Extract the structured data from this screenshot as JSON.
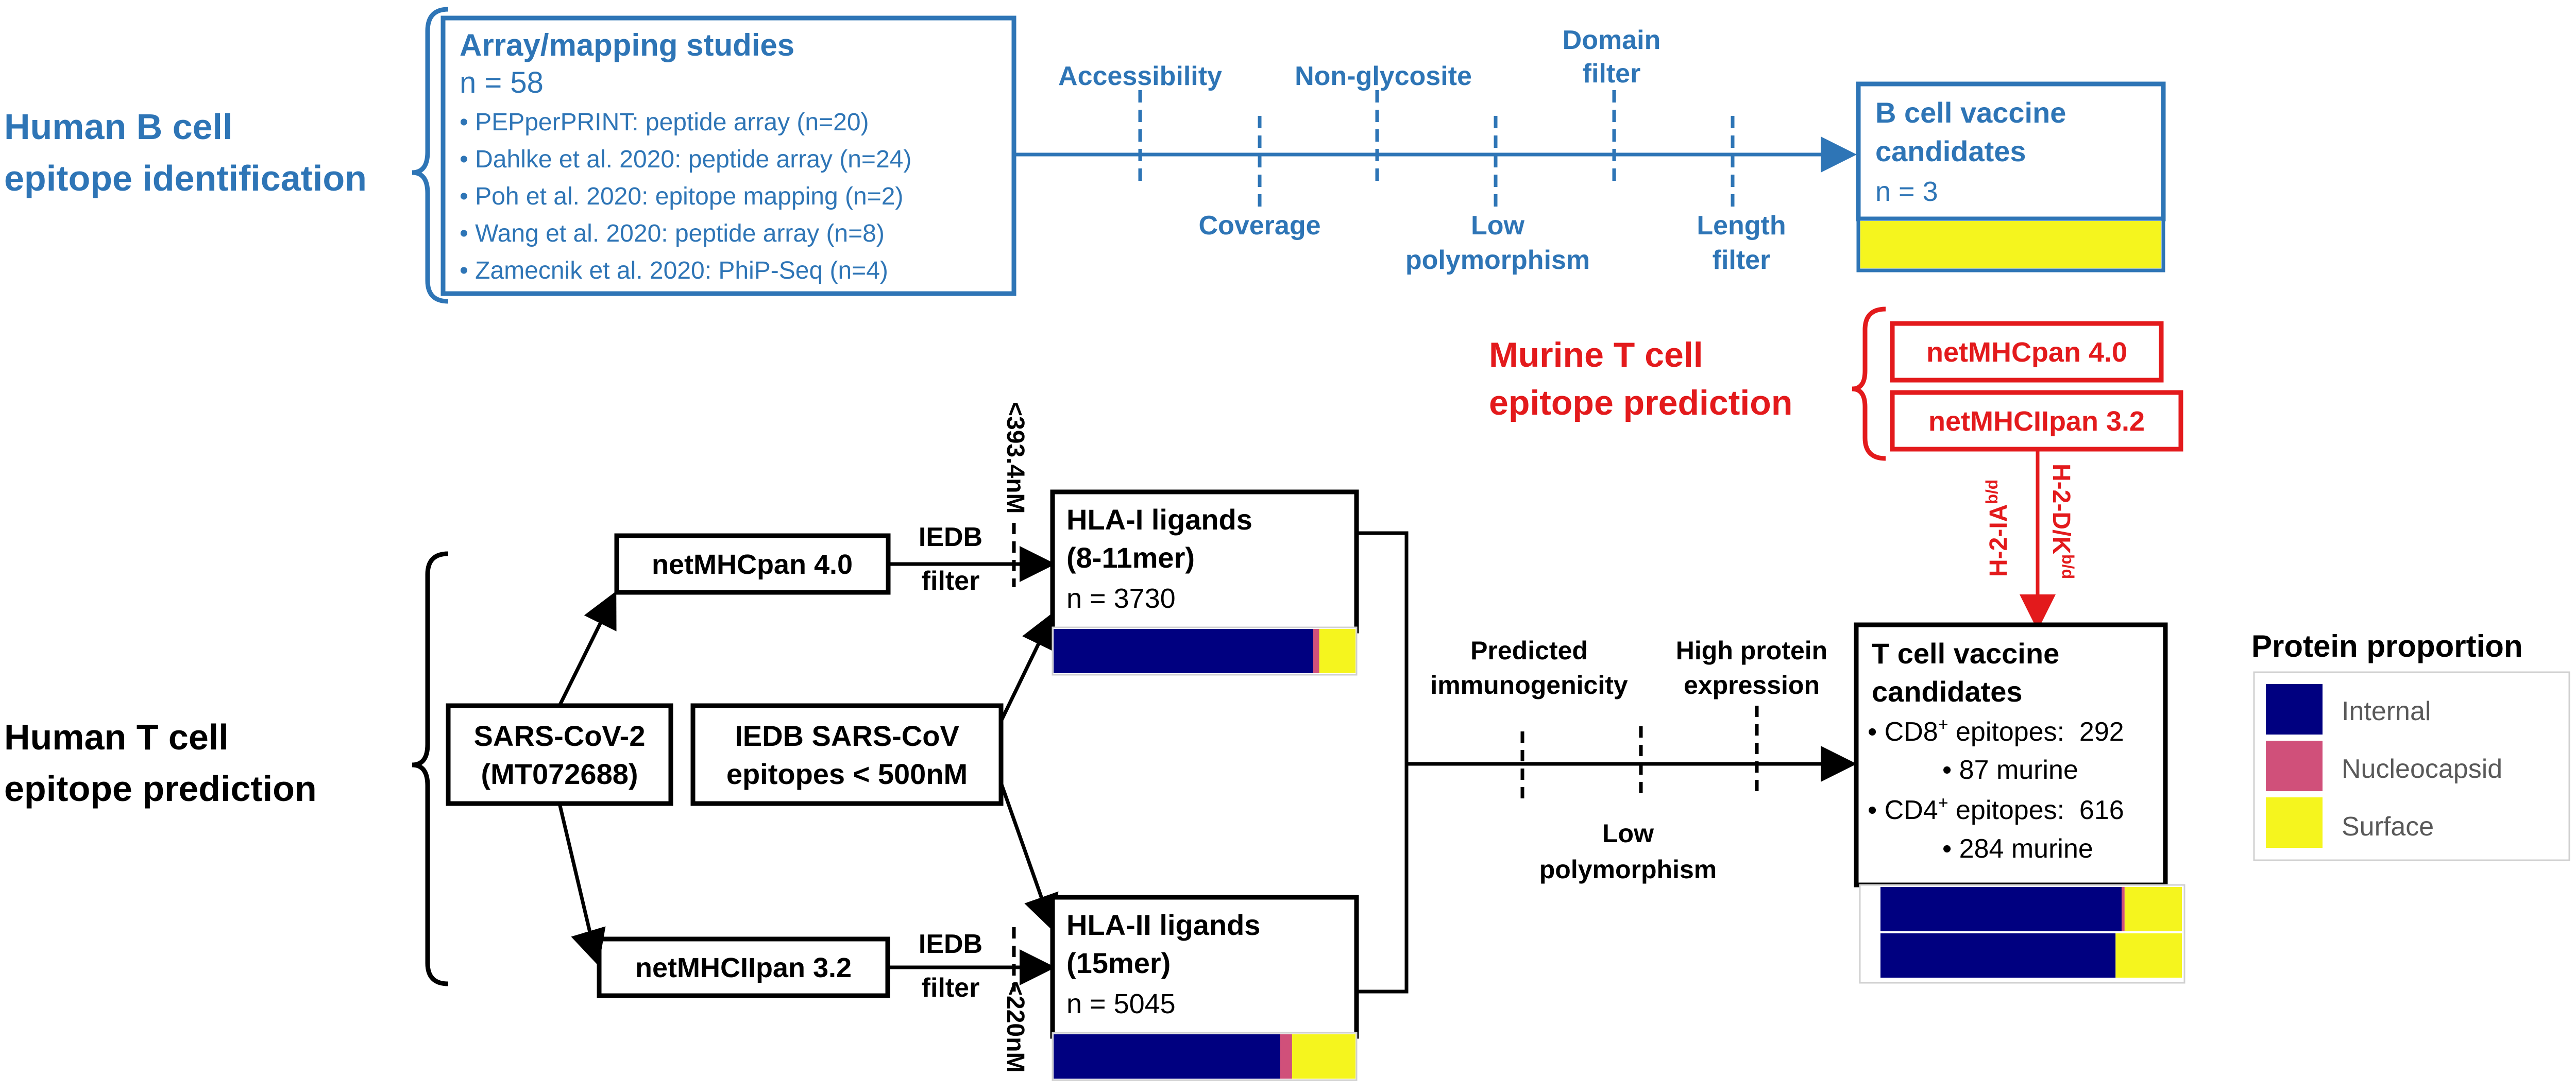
{
  "b_cell": {
    "section_label": [
      "Human B cell",
      "epitope identification"
    ],
    "studies_title": "Array/mapping studies",
    "studies_n": "n = 58",
    "studies": [
      "• PEPperPRINT: peptide array (n=20)",
      "• Dahlke et al. 2020: peptide array (n=24)",
      "• Poh et al. 2020: epitope mapping (n=2)",
      "• Wang et al. 2020: peptide array (n=8)",
      "• Zamecnik et al. 2020: PhiP-Seq (n=4)"
    ],
    "filters": {
      "accessibility": "Accessibility",
      "coverage": "Coverage",
      "non_glycosite": "Non-glycosite",
      "low_polymorphism": [
        "Low",
        "polymorphism"
      ],
      "domain_filter": [
        "Domain",
        "filter"
      ],
      "length_filter": [
        "Length",
        "filter"
      ]
    },
    "candidates_title": [
      "B cell vaccine",
      "candidates"
    ],
    "candidates_n": "n = 3"
  },
  "murine": {
    "section_label": [
      "Murine T cell",
      "epitope prediction"
    ],
    "tools": [
      "netMHCpan 4.0",
      "netMHCIIpan 3.2"
    ],
    "allele_1": "H-2-D/K",
    "allele_1_sup": "b/d",
    "allele_2": "H-2-IA",
    "allele_2_sup": "b/d"
  },
  "t_cell": {
    "section_label": [
      "Human T cell",
      "epitope prediction"
    ],
    "source": [
      "SARS-CoV-2",
      "(MT072688)"
    ],
    "iedb_source": [
      "IEDB SARS-CoV",
      "epitopes < 500nM"
    ],
    "tool_1": "netMHCpan 4.0",
    "tool_2": "netMHCIIpan 3.2",
    "iedb_filter": [
      "IEDB",
      "filter"
    ],
    "threshold_1": "<393.4nM",
    "threshold_2": "<220nM",
    "hla1_title": [
      "HLA-I ligands",
      "(8-11mer)"
    ],
    "hla1_n": "n = 3730",
    "hla2_title": [
      "HLA-II ligands",
      "(15mer)"
    ],
    "hla2_n": "n = 5045",
    "filters": {
      "predicted_immunogenicity": [
        "Predicted",
        "immunogenicity"
      ],
      "low_polymorphism": [
        "Low",
        "polymorphism"
      ],
      "high_protein_expression": [
        "High protein",
        "expression"
      ]
    },
    "candidates_title": [
      "T cell vaccine",
      "candidates"
    ],
    "cd8_prefix": "• CD8",
    "cd8_sup": "+",
    "cd8_suffix": " epitopes:  292",
    "cd8_murine": "• 87 murine",
    "cd4_prefix": "• CD4",
    "cd4_sup": "+",
    "cd4_suffix": " epitopes:  616",
    "cd4_murine": "• 284 murine"
  },
  "legend": {
    "title": "Protein proportion",
    "items": [
      {
        "label": "Internal",
        "color": "#000080"
      },
      {
        "label": "Nucleocapsid",
        "color": "#d0507a"
      },
      {
        "label": "Surface",
        "color": "#f5f51e"
      }
    ]
  },
  "proportion_bars": {
    "b_cell_candidates": [
      0,
      0,
      1
    ],
    "hla1": [
      0.86,
      0.02,
      0.12
    ],
    "hla2": [
      0.75,
      0.04,
      0.21
    ],
    "t_cd8": [
      0.8,
      0.01,
      0.19
    ],
    "t_cd4": [
      0.78,
      0.0,
      0.22
    ]
  },
  "colors": {
    "blue": "#2e75b6",
    "red": "#e31a1c",
    "black": "#000000"
  }
}
